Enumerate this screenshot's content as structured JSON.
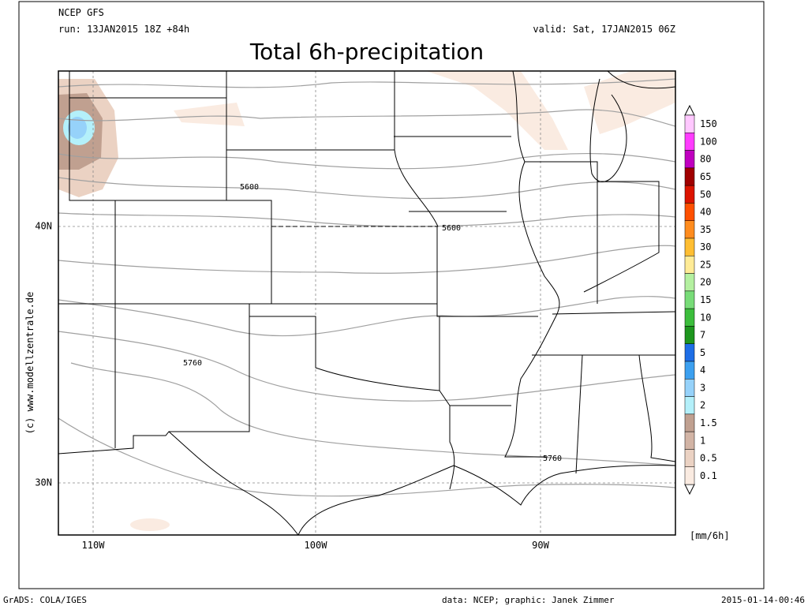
{
  "header": {
    "model": "NCEP GFS",
    "run": "run: 13JAN2015 18Z +84h",
    "valid": "valid: Sat, 17JAN2015 06Z",
    "title": "Total 6h-precipitation"
  },
  "map": {
    "lat_labels": [
      "40N",
      "30N"
    ],
    "lon_labels": [
      "110W",
      "100W",
      "90W"
    ],
    "contour_labels": [
      "5600",
      "5600",
      "5760",
      "5760"
    ],
    "copyright": "(c) www.modellzentrale.de"
  },
  "colorbar": {
    "levels": [
      {
        "label": "150",
        "color": "#ffc8ff"
      },
      {
        "label": "100",
        "color": "#ff3cff"
      },
      {
        "label": "80",
        "color": "#c000c0"
      },
      {
        "label": "65",
        "color": "#a00000"
      },
      {
        "label": "50",
        "color": "#dc1400"
      },
      {
        "label": "40",
        "color": "#ff5000"
      },
      {
        "label": "35",
        "color": "#ff8c1e"
      },
      {
        "label": "30",
        "color": "#ffbe32"
      },
      {
        "label": "25",
        "color": "#ffeb96"
      },
      {
        "label": "20",
        "color": "#b4f0a0"
      },
      {
        "label": "15",
        "color": "#78dc78"
      },
      {
        "label": "10",
        "color": "#3cbe3c"
      },
      {
        "label": "7",
        "color": "#1e961e"
      },
      {
        "label": "5",
        "color": "#1e6ee6"
      },
      {
        "label": "4",
        "color": "#3ca0f0"
      },
      {
        "label": "3",
        "color": "#96d2fa"
      },
      {
        "label": "2",
        "color": "#b4f0fa"
      },
      {
        "label": "1.5",
        "color": "#c0a090"
      },
      {
        "label": "1",
        "color": "#d2b4a5"
      },
      {
        "label": "0.5",
        "color": "#ebd2c3"
      },
      {
        "label": "0.1",
        "color": "#faebe1"
      }
    ],
    "unit": "[mm/6h]"
  },
  "footer": {
    "left": "GrADS: COLA/IGES",
    "center": "data: NCEP; graphic: Janek Zimmer",
    "right": "2015-01-14-00:46"
  }
}
